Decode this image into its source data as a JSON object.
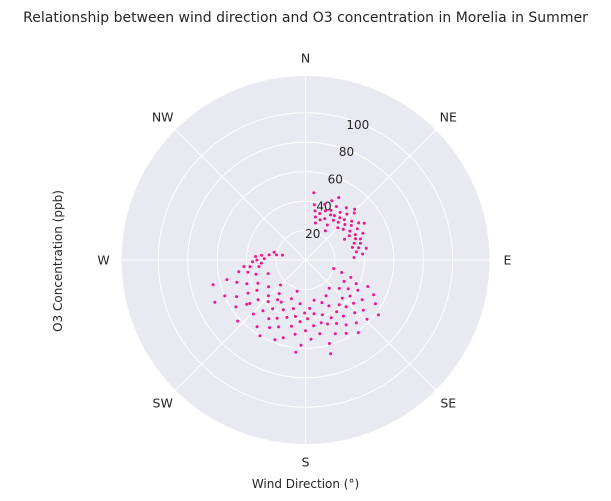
{
  "chart_data": {
    "type": "scatter",
    "projection": "polar",
    "title": "Relationship between wind direction and O3 concentration in Morelia in Summer",
    "xlabel": "Wind Direction (°)",
    "ylabel": "O3 Concentration (ppb)",
    "theta_direction": "clockwise",
    "theta_zero": "N",
    "direction_labels": [
      "N",
      "NE",
      "E",
      "SE",
      "S",
      "SW",
      "W",
      "NW"
    ],
    "radial_ticks": [
      20,
      40,
      60,
      80,
      100
    ],
    "rlim": [
      0,
      125
    ],
    "grid": true,
    "colors": {
      "points": "#f0168c",
      "face": "#e9e9f1",
      "grid": "#ffffff"
    },
    "series": [
      {
        "points": [
          {
            "theta": 7,
            "r": 46
          },
          {
            "theta": 9,
            "r": 38
          },
          {
            "theta": 11,
            "r": 34
          },
          {
            "theta": 13,
            "r": 30
          },
          {
            "theta": 15,
            "r": 26
          },
          {
            "theta": 17,
            "r": 33
          },
          {
            "theta": 19,
            "r": 40
          },
          {
            "theta": 20,
            "r": 29
          },
          {
            "theta": 22,
            "r": 36
          },
          {
            "theta": 24,
            "r": 44
          },
          {
            "theta": 25,
            "r": 31
          },
          {
            "theta": 27,
            "r": 38
          },
          {
            "theta": 29,
            "r": 35
          },
          {
            "theta": 30,
            "r": 42
          },
          {
            "theta": 32,
            "r": 28
          },
          {
            "theta": 33,
            "r": 36
          },
          {
            "theta": 35,
            "r": 33
          },
          {
            "theta": 36,
            "r": 40
          },
          {
            "theta": 38,
            "r": 45
          },
          {
            "theta": 39,
            "r": 37
          },
          {
            "theta": 41,
            "r": 34
          },
          {
            "theta": 42,
            "r": 42
          },
          {
            "theta": 44,
            "r": 38
          },
          {
            "theta": 45,
            "r": 31
          },
          {
            "theta": 46,
            "r": 46
          },
          {
            "theta": 48,
            "r": 36
          },
          {
            "theta": 50,
            "r": 41
          },
          {
            "theta": 51,
            "r": 33
          },
          {
            "theta": 53,
            "r": 39
          },
          {
            "theta": 55,
            "r": 44
          },
          {
            "theta": 57,
            "r": 36
          },
          {
            "theta": 59,
            "r": 41
          },
          {
            "theta": 61,
            "r": 34
          },
          {
            "theta": 63,
            "r": 38
          },
          {
            "theta": 65,
            "r": 43
          },
          {
            "theta": 67,
            "r": 37
          },
          {
            "theta": 69,
            "r": 40
          },
          {
            "theta": 71,
            "r": 35
          },
          {
            "theta": 73,
            "r": 39
          },
          {
            "theta": 75,
            "r": 33
          },
          {
            "theta": 77,
            "r": 37
          },
          {
            "theta": 79,
            "r": 42
          },
          {
            "theta": 81,
            "r": 35
          },
          {
            "theta": 84,
            "r": 39
          },
          {
            "theta": 87,
            "r": 33
          },
          {
            "theta": 44,
            "r": 48
          },
          {
            "theta": 28,
            "r": 48
          },
          {
            "theta": 58,
            "r": 47
          },
          {
            "theta": 34,
            "r": 24
          },
          {
            "theta": 62,
            "r": 30
          },
          {
            "theta": 107,
            "r": 20
          },
          {
            "theta": 109,
            "r": 26
          },
          {
            "theta": 111,
            "r": 33
          },
          {
            "theta": 113,
            "r": 46
          },
          {
            "theta": 115,
            "r": 38
          },
          {
            "theta": 117,
            "r": 52
          },
          {
            "theta": 119,
            "r": 30
          },
          {
            "theta": 120,
            "r": 41
          },
          {
            "theta": 122,
            "r": 56
          },
          {
            "theta": 124,
            "r": 35
          },
          {
            "theta": 125,
            "r": 47
          },
          {
            "theta": 127,
            "r": 62
          },
          {
            "theta": 129,
            "r": 39
          },
          {
            "theta": 131,
            "r": 52
          },
          {
            "theta": 132,
            "r": 44
          },
          {
            "theta": 134,
            "r": 58
          },
          {
            "theta": 136,
            "r": 36
          },
          {
            "theta": 137,
            "r": 49
          },
          {
            "theta": 139,
            "r": 42
          },
          {
            "theta": 141,
            "r": 55
          },
          {
            "theta": 143,
            "r": 38
          },
          {
            "theta": 144,
            "r": 61
          },
          {
            "theta": 146,
            "r": 46
          },
          {
            "theta": 148,
            "r": 52
          },
          {
            "theta": 149,
            "r": 41
          },
          {
            "theta": 151,
            "r": 57
          },
          {
            "theta": 153,
            "r": 35
          },
          {
            "theta": 154,
            "r": 48
          },
          {
            "theta": 156,
            "r": 43
          },
          {
            "theta": 158,
            "r": 54
          },
          {
            "theta": 159,
            "r": 31
          },
          {
            "theta": 161,
            "r": 46
          },
          {
            "theta": 163,
            "r": 39
          },
          {
            "theta": 164,
            "r": 59
          },
          {
            "theta": 166,
            "r": 44
          },
          {
            "theta": 168,
            "r": 28
          },
          {
            "theta": 169,
            "r": 51
          },
          {
            "theta": 171,
            "r": 37
          },
          {
            "theta": 173,
            "r": 45
          },
          {
            "theta": 175,
            "r": 33
          },
          {
            "theta": 176,
            "r": 54
          },
          {
            "theta": 178,
            "r": 40
          },
          {
            "theta": 180,
            "r": 48
          },
          {
            "theta": 181,
            "r": 36
          },
          {
            "theta": 183,
            "r": 58
          },
          {
            "theta": 185,
            "r": 42
          },
          {
            "theta": 187,
            "r": 30
          },
          {
            "theta": 188,
            "r": 51
          },
          {
            "theta": 190,
            "r": 39
          },
          {
            "theta": 192,
            "r": 46
          },
          {
            "theta": 194,
            "r": 34
          },
          {
            "theta": 196,
            "r": 55
          },
          {
            "theta": 198,
            "r": 41
          },
          {
            "theta": 200,
            "r": 28
          },
          {
            "theta": 202,
            "r": 49
          },
          {
            "theta": 204,
            "r": 37
          },
          {
            "theta": 206,
            "r": 44
          },
          {
            "theta": 208,
            "r": 52
          },
          {
            "theta": 210,
            "r": 33
          },
          {
            "theta": 212,
            "r": 47
          },
          {
            "theta": 214,
            "r": 40
          },
          {
            "theta": 216,
            "r": 56
          },
          {
            "theta": 218,
            "r": 29
          },
          {
            "theta": 220,
            "r": 45
          },
          {
            "theta": 222,
            "r": 38
          },
          {
            "theta": 224,
            "r": 51
          },
          {
            "theta": 226,
            "r": 35
          },
          {
            "theta": 228,
            "r": 62
          },
          {
            "theta": 230,
            "r": 42
          },
          {
            "theta": 232,
            "r": 48
          },
          {
            "theta": 234,
            "r": 31
          },
          {
            "theta": 236,
            "r": 57
          },
          {
            "theta": 238,
            "r": 39
          },
          {
            "theta": 240,
            "r": 45
          },
          {
            "theta": 242,
            "r": 53
          },
          {
            "theta": 244,
            "r": 36
          },
          {
            "theta": 246,
            "r": 60
          },
          {
            "theta": 248,
            "r": 43
          },
          {
            "theta": 250,
            "r": 27
          },
          {
            "theta": 252,
            "r": 49
          },
          {
            "theta": 254,
            "r": 35
          },
          {
            "theta": 256,
            "r": 55
          },
          {
            "theta": 258,
            "r": 40
          },
          {
            "theta": 260,
            "r": 46
          },
          {
            "theta": 262,
            "r": 32
          },
          {
            "theta": 264,
            "r": 42
          },
          {
            "theta": 266,
            "r": 30
          },
          {
            "theta": 268,
            "r": 36
          },
          {
            "theta": 270,
            "r": 33
          },
          {
            "theta": 272,
            "r": 28
          },
          {
            "theta": 274,
            "r": 34
          },
          {
            "theta": 276,
            "r": 30
          },
          {
            "theta": 278,
            "r": 25
          },
          {
            "theta": 280,
            "r": 20
          },
          {
            "theta": 282,
            "r": 16
          },
          {
            "theta": 284,
            "r": 22
          },
          {
            "theta": 245,
            "r": 68
          },
          {
            "theta": 255,
            "r": 65
          },
          {
            "theta": 186,
            "r": 63
          },
          {
            "theta": 201,
            "r": 58
          },
          {
            "theta": 165,
            "r": 66
          },
          {
            "theta": 215,
            "r": 33
          },
          {
            "theta": 225,
            "r": 24
          },
          {
            "theta": 195,
            "r": 22
          },
          {
            "theta": 150,
            "r": 28
          },
          {
            "theta": 140,
            "r": 25
          },
          {
            "theta": 130,
            "r": 30
          },
          {
            "theta": 263,
            "r": 38
          },
          {
            "theta": 233,
            "r": 50
          },
          {
            "theta": 211,
            "r": 60
          }
        ]
      }
    ]
  }
}
